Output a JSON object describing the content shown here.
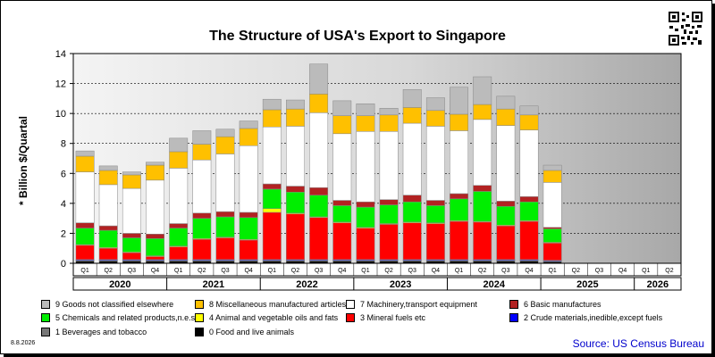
{
  "title": "The Structure of USA's Export to Singapore",
  "ylabel": "* Billion $/Quartal",
  "date_stamp": "8.8.2026",
  "source": "Source: US Census Bureau",
  "colors": {
    "c0": "#000000",
    "c1": "#777777",
    "c2": "#0000ff",
    "c3": "#ff0000",
    "c4": "#ffff00",
    "c5": "#00ee00",
    "c6": "#b22222",
    "c7": "#ffffff",
    "c8": "#ffc000",
    "c9": "#bbbbbb"
  },
  "legend": [
    {
      "key": "c9",
      "label": "9 Goods not classified elsewhere"
    },
    {
      "key": "c8",
      "label": "8 Miscellaneous manufactured articles"
    },
    {
      "key": "c7",
      "label": "7 Machinery,transport equipment"
    },
    {
      "key": "c6",
      "label": "6 Basic manufactures"
    },
    {
      "key": "c5",
      "label": "5 Chemicals and related products,n.e.s."
    },
    {
      "key": "c4",
      "label": "4 Animal and vegetable oils and fats"
    },
    {
      "key": "c3",
      "label": "3 Mineral fuels etc"
    },
    {
      "key": "c2",
      "label": "2 Crude materials,inedible,except fuels"
    },
    {
      "key": "c1",
      "label": "1 Beverages and tobacco"
    },
    {
      "key": "c0",
      "label": "0 Food and live animals"
    }
  ],
  "chart_data": {
    "type": "bar",
    "stacked": true,
    "ylim": [
      0,
      14
    ],
    "yticks": [
      0,
      2,
      4,
      6,
      8,
      10,
      12,
      14
    ],
    "grid": true,
    "legend_position": "bottom",
    "years": [
      "2020",
      "2021",
      "2022",
      "2023",
      "2024",
      "2025",
      "2026"
    ],
    "quarter_labels": [
      "Q1",
      "Q2",
      "Q3",
      "Q4"
    ],
    "categories": [
      "2020 Q1",
      "2020 Q2",
      "2020 Q3",
      "2020 Q4",
      "2021 Q1",
      "2021 Q2",
      "2021 Q3",
      "2021 Q4",
      "2022 Q1",
      "2022 Q2",
      "2022 Q3",
      "2022 Q4",
      "2023 Q1",
      "2023 Q2",
      "2023 Q3",
      "2023 Q4",
      "2024 Q1",
      "2024 Q2",
      "2024 Q3",
      "2024 Q4",
      "2025 Q1",
      "2025 Q2",
      "2025 Q3",
      "2025 Q4",
      "2026 Q1",
      "2026 Q2"
    ],
    "series": [
      {
        "name": "0 Food and live animals",
        "key": "c0",
        "values": [
          0.15,
          0.15,
          0.15,
          0.15,
          0.15,
          0.15,
          0.15,
          0.15,
          0.15,
          0.15,
          0.15,
          0.15,
          0.15,
          0.15,
          0.15,
          0.15,
          0.15,
          0.15,
          0.15,
          0.15,
          0.1,
          0,
          0,
          0,
          0,
          0
        ]
      },
      {
        "name": "1 Beverages and tobacco",
        "key": "c1",
        "values": [
          0.05,
          0.05,
          0.05,
          0.05,
          0.05,
          0.05,
          0.05,
          0.05,
          0.05,
          0.05,
          0.05,
          0.05,
          0.05,
          0.05,
          0.05,
          0.05,
          0.05,
          0.05,
          0.05,
          0.05,
          0.05,
          0,
          0,
          0,
          0,
          0
        ]
      },
      {
        "name": "2 Crude materials,inedible,except fuels",
        "key": "c2",
        "values": [
          0.05,
          0.05,
          0.05,
          0.05,
          0.05,
          0.05,
          0.05,
          0.05,
          0.05,
          0.05,
          0.05,
          0.05,
          0.05,
          0.05,
          0.05,
          0.05,
          0.05,
          0.05,
          0.05,
          0.05,
          0.05,
          0,
          0,
          0,
          0,
          0
        ]
      },
      {
        "name": "3 Mineral fuels etc",
        "key": "c3",
        "values": [
          0.95,
          0.75,
          0.45,
          0.2,
          0.85,
          1.35,
          1.45,
          1.3,
          3.15,
          3.05,
          2.8,
          2.45,
          2.1,
          2.35,
          2.45,
          2.4,
          2.55,
          2.5,
          2.25,
          2.55,
          1.15,
          0,
          0,
          0,
          0,
          0
        ]
      },
      {
        "name": "4 Animal and vegetable oils and fats",
        "key": "c4",
        "values": [
          0.05,
          0.05,
          0.05,
          0.05,
          0.05,
          0.05,
          0.05,
          0.05,
          0.25,
          0.05,
          0.05,
          0.05,
          0.05,
          0.05,
          0.05,
          0.05,
          0.05,
          0.05,
          0.05,
          0.05,
          0.05,
          0,
          0,
          0,
          0,
          0
        ]
      },
      {
        "name": "5 Chemicals and related products,n.e.s.",
        "key": "c5",
        "values": [
          1.1,
          1.15,
          0.95,
          1.15,
          1.2,
          1.35,
          1.35,
          1.45,
          1.3,
          1.4,
          1.45,
          1.1,
          1.35,
          1.25,
          1.35,
          1.15,
          1.45,
          2.0,
          1.25,
          1.25,
          0.9,
          0,
          0,
          0,
          0,
          0
        ]
      },
      {
        "name": "6 Basic manufactures",
        "key": "c6",
        "values": [
          0.35,
          0.3,
          0.3,
          0.3,
          0.3,
          0.35,
          0.35,
          0.35,
          0.35,
          0.4,
          0.5,
          0.35,
          0.35,
          0.35,
          0.45,
          0.35,
          0.35,
          0.4,
          0.35,
          0.35,
          0.1,
          0,
          0,
          0,
          0,
          0
        ]
      },
      {
        "name": "7 Machinery,transport equipment",
        "key": "c7",
        "values": [
          3.4,
          2.75,
          3.0,
          3.6,
          3.7,
          3.55,
          3.85,
          4.45,
          3.8,
          4.0,
          5.0,
          4.45,
          4.7,
          4.55,
          4.8,
          4.95,
          4.2,
          4.4,
          5.05,
          4.45,
          3.0,
          0,
          0,
          0,
          0,
          0
        ]
      },
      {
        "name": "8 Miscellaneous manufactured articles",
        "key": "c8",
        "values": [
          1.05,
          0.95,
          0.9,
          1.0,
          1.1,
          1.05,
          1.15,
          1.15,
          1.15,
          1.15,
          1.25,
          1.2,
          1.05,
          1.1,
          1.05,
          1.05,
          1.1,
          1.0,
          1.1,
          1.0,
          0.8,
          0,
          0,
          0,
          0,
          0
        ]
      },
      {
        "name": "9 Goods not classified elsewhere",
        "key": "c9",
        "values": [
          0.35,
          0.3,
          0.2,
          0.2,
          0.9,
          0.9,
          0.5,
          0.5,
          0.7,
          0.6,
          2.0,
          1.0,
          0.8,
          0.45,
          1.2,
          0.85,
          1.8,
          1.85,
          0.85,
          0.6,
          0.35,
          0,
          0,
          0,
          0,
          0
        ]
      }
    ]
  }
}
